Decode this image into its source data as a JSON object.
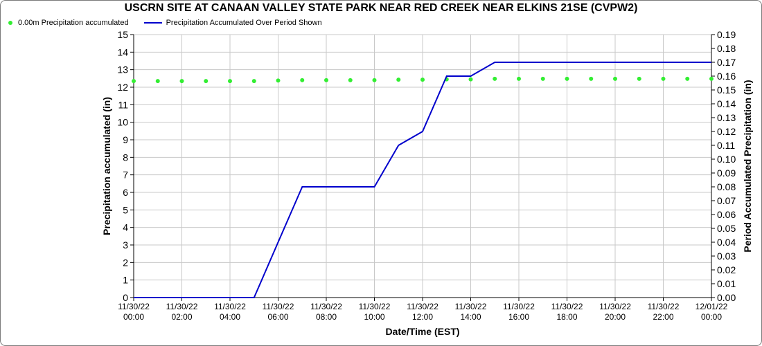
{
  "chart_data": {
    "type": "line",
    "title": "USCRN SITE AT CANAAN VALLEY STATE PARK NEAR RED CREEK NEAR ELKINS 21SE (CVPW2)",
    "xlabel": "Date/Time (EST)",
    "ylabel_left": "Precipitation accumulated (in)",
    "ylabel_right": "Period Accumulated Precipitation (in)",
    "x_ticks": [
      {
        "hour": 0,
        "date": "11/30/22",
        "time": "00:00"
      },
      {
        "hour": 2,
        "date": "11/30/22",
        "time": "02:00"
      },
      {
        "hour": 4,
        "date": "11/30/22",
        "time": "04:00"
      },
      {
        "hour": 6,
        "date": "11/30/22",
        "time": "06:00"
      },
      {
        "hour": 8,
        "date": "11/30/22",
        "time": "08:00"
      },
      {
        "hour": 10,
        "date": "11/30/22",
        "time": "10:00"
      },
      {
        "hour": 12,
        "date": "11/30/22",
        "time": "12:00"
      },
      {
        "hour": 14,
        "date": "11/30/22",
        "time": "14:00"
      },
      {
        "hour": 16,
        "date": "11/30/22",
        "time": "16:00"
      },
      {
        "hour": 18,
        "date": "11/30/22",
        "time": "18:00"
      },
      {
        "hour": 20,
        "date": "11/30/22",
        "time": "20:00"
      },
      {
        "hour": 22,
        "date": "11/30/22",
        "time": "22:00"
      },
      {
        "hour": 24,
        "date": "12/01/22",
        "time": "00:00"
      }
    ],
    "xlim": [
      0,
      24
    ],
    "ylim_left": [
      0,
      15
    ],
    "ylim_right": [
      0,
      0.19
    ],
    "yticks_left": [
      "0",
      "1",
      "2",
      "3",
      "4",
      "5",
      "6",
      "7",
      "8",
      "9",
      "10",
      "11",
      "12",
      "13",
      "14",
      "15"
    ],
    "yticks_right": [
      "0.00",
      "0.01",
      "0.02",
      "0.03",
      "0.04",
      "0.05",
      "0.06",
      "0.07",
      "0.08",
      "0.09",
      "0.10",
      "0.11",
      "0.12",
      "0.13",
      "0.14",
      "0.15",
      "0.16",
      "0.17",
      "0.18",
      "0.19"
    ],
    "grid": true,
    "legend_position": "top-left",
    "series": [
      {
        "name": "0.00m Precipitation accumulated",
        "axis": "left",
        "style": "markers",
        "color": "#33ee33",
        "x": [
          0,
          1,
          2,
          3,
          4,
          5,
          6,
          7,
          8,
          9,
          10,
          11,
          12,
          13,
          14,
          15,
          16,
          17,
          18,
          19,
          20,
          21,
          22,
          23,
          24
        ],
        "values": [
          12.35,
          12.35,
          12.35,
          12.35,
          12.35,
          12.35,
          12.38,
          12.4,
          12.4,
          12.4,
          12.4,
          12.43,
          12.43,
          12.45,
          12.45,
          12.48,
          12.48,
          12.48,
          12.48,
          12.48,
          12.48,
          12.48,
          12.48,
          12.48,
          12.48
        ]
      },
      {
        "name": "Precipitation Accumulated Over Period Shown",
        "axis": "right",
        "style": "line",
        "color": "#0000cc",
        "x": [
          0,
          1,
          2,
          3,
          4,
          5,
          6,
          7,
          8,
          9,
          10,
          11,
          12,
          13,
          14,
          15,
          16,
          17,
          18,
          19,
          20,
          21,
          22,
          23,
          24
        ],
        "values": [
          0,
          0,
          0,
          0,
          0,
          0,
          0.04,
          0.08,
          0.08,
          0.08,
          0.08,
          0.11,
          0.12,
          0.16,
          0.16,
          0.17,
          0.17,
          0.17,
          0.17,
          0.17,
          0.17,
          0.17,
          0.17,
          0.17,
          0.17
        ]
      }
    ]
  }
}
